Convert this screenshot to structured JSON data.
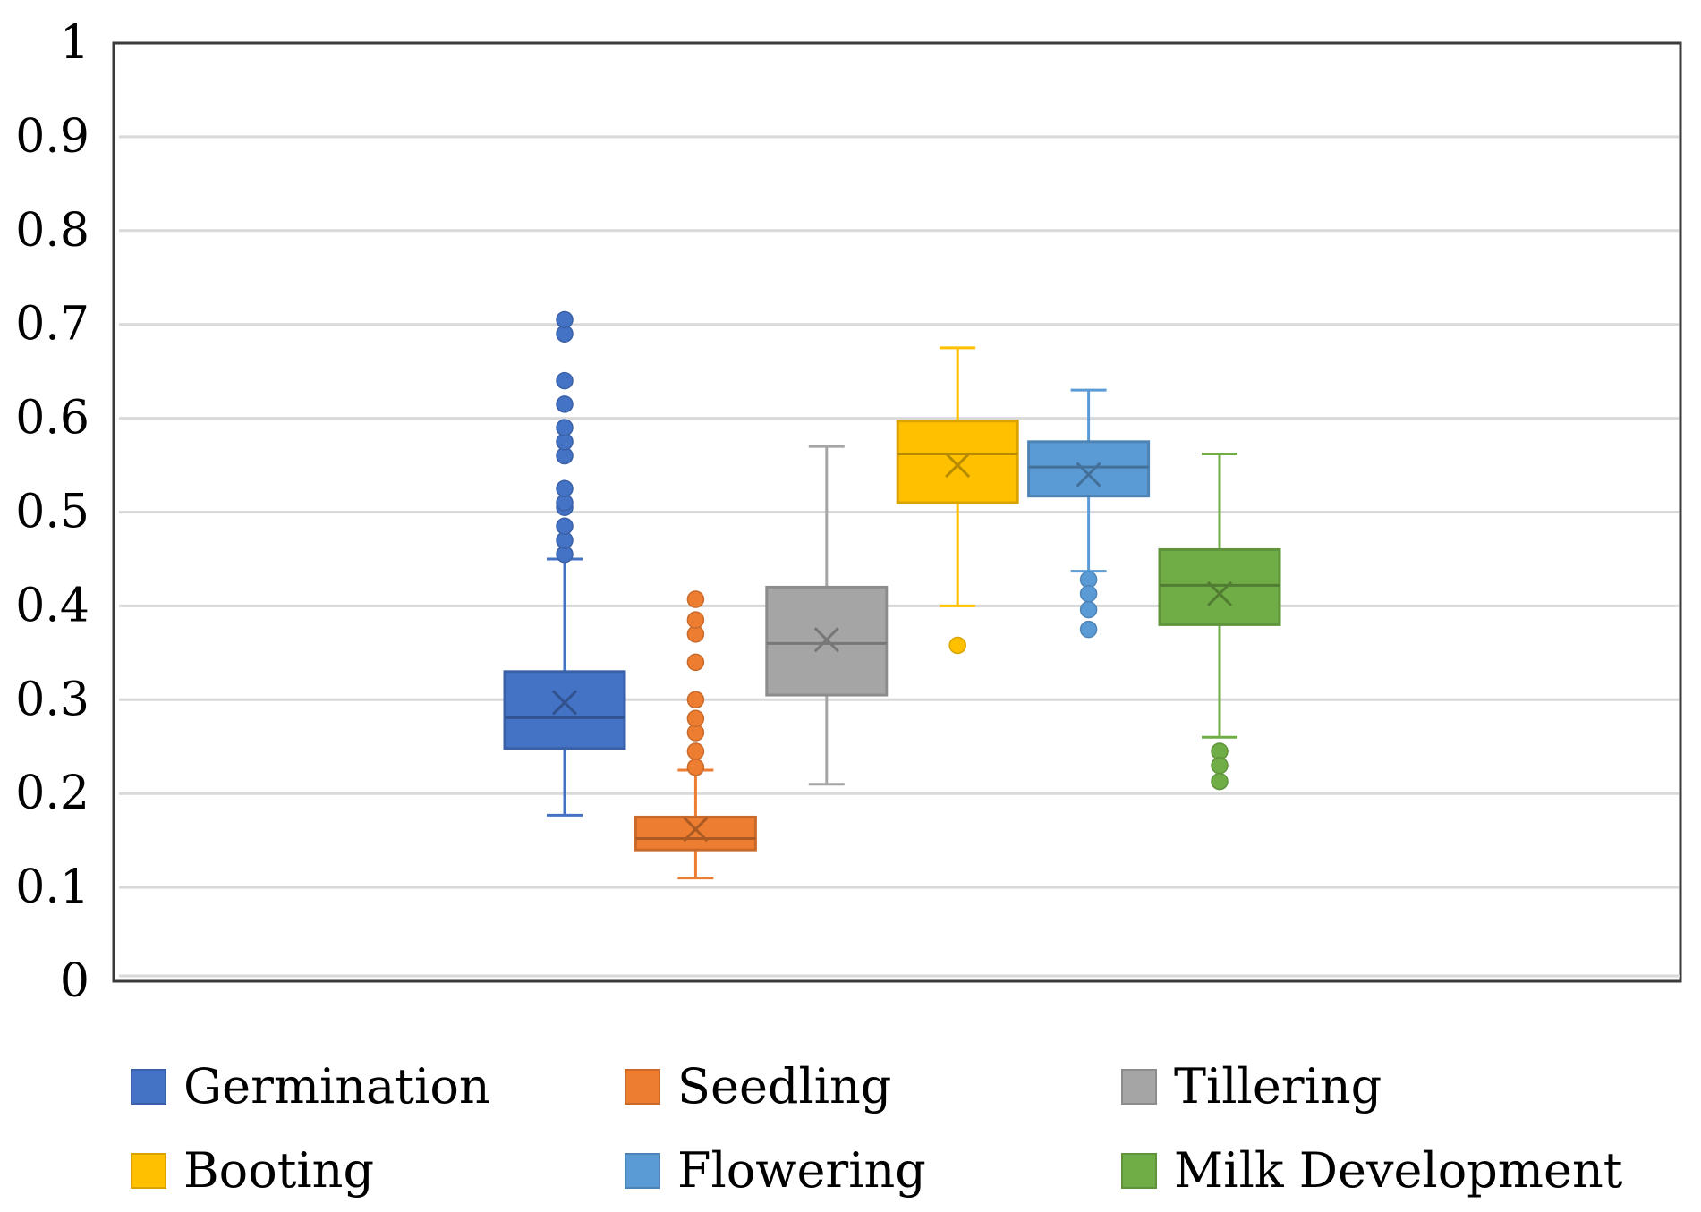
{
  "chart_data": {
    "type": "boxplot",
    "title": "",
    "xlabel": "",
    "ylabel": "",
    "ylim": [
      0,
      1
    ],
    "yticks": [
      "0",
      "0.1",
      "0.2",
      "0.3",
      "0.4",
      "0.5",
      "0.6",
      "0.7",
      "0.8",
      "0.9",
      "1"
    ],
    "grid": true,
    "legend_position": "bottom",
    "series": [
      {
        "name": "Germination",
        "color": "#4472C4",
        "min": 0.177,
        "q1": 0.248,
        "median": 0.281,
        "q3": 0.33,
        "max": 0.45,
        "mean": 0.297,
        "outliers": [
          0.455,
          0.47,
          0.485,
          0.505,
          0.51,
          0.525,
          0.56,
          0.575,
          0.59,
          0.615,
          0.64,
          0.69,
          0.705
        ]
      },
      {
        "name": "Seedling",
        "color": "#ED7D31",
        "min": 0.11,
        "q1": 0.14,
        "median": 0.152,
        "q3": 0.175,
        "max": 0.225,
        "mean": 0.162,
        "outliers": [
          0.228,
          0.245,
          0.265,
          0.28,
          0.3,
          0.34,
          0.37,
          0.385,
          0.407
        ]
      },
      {
        "name": "Tillering",
        "color": "#A5A5A5",
        "min": 0.21,
        "q1": 0.305,
        "median": 0.36,
        "q3": 0.42,
        "max": 0.57,
        "mean": 0.364,
        "outliers": []
      },
      {
        "name": "Booting",
        "color": "#FFC000",
        "min": 0.4,
        "q1": 0.51,
        "median": 0.562,
        "q3": 0.597,
        "max": 0.675,
        "mean": 0.55,
        "outliers": [
          0.358
        ]
      },
      {
        "name": "Flowering",
        "color": "#5B9BD5",
        "min": 0.437,
        "q1": 0.517,
        "median": 0.548,
        "q3": 0.575,
        "max": 0.63,
        "mean": 0.54,
        "outliers": [
          0.428,
          0.413,
          0.396,
          0.375
        ]
      },
      {
        "name": "Milk Development",
        "color": "#70AD47",
        "min": 0.26,
        "q1": 0.38,
        "median": 0.422,
        "q3": 0.46,
        "max": 0.562,
        "mean": 0.413,
        "outliers": [
          0.245,
          0.23,
          0.213
        ]
      }
    ]
  }
}
